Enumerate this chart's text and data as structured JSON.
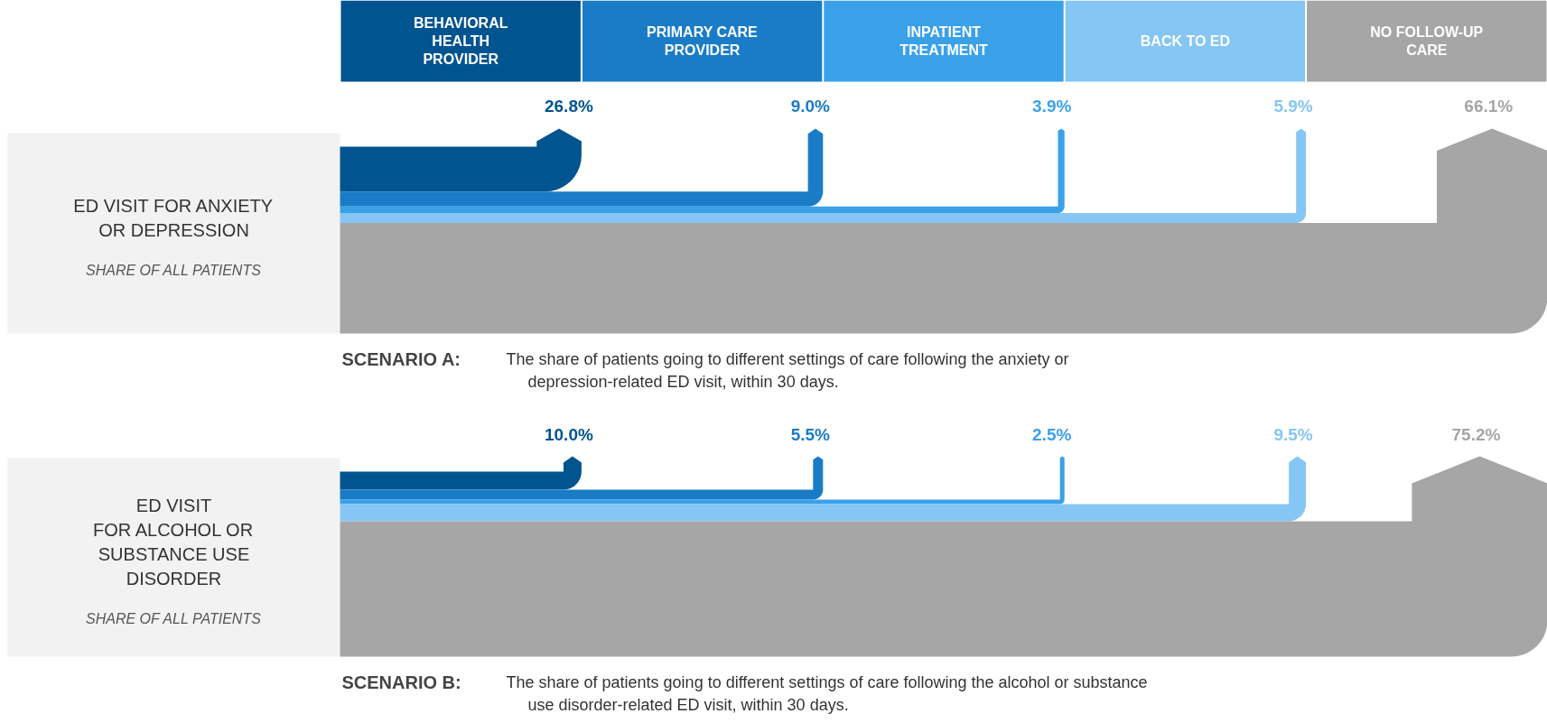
{
  "chart_data": [
    {
      "type": "other",
      "title": "ED VISIT FOR ANXIETY\nOR DEPRESSION",
      "subtitle": "SHARE OF ALL PATIENTS",
      "categories": [
        "BEHAVIORAL HEALTH PROVIDER",
        "PRIMARY CARE PROVIDER",
        "INPATIENT TREATMENT",
        "BACK TO ED",
        "NO FOLLOW-UP CARE"
      ],
      "values": [
        26.8,
        9.0,
        3.9,
        5.9,
        66.1
      ],
      "value_labels": [
        "26.8%",
        "9.0%",
        "3.9%",
        "5.9%",
        "66.1%"
      ],
      "colors": [
        "#00548f",
        "#1a7cc7",
        "#3aa1e9",
        "#86c6f4",
        "#a6a6a6"
      ],
      "annotations": [
        "SCENARIO A:",
        "The share of patients going to different settings of care following the anxiety or\ndepression-related ED visit, within 30 days."
      ]
    },
    {
      "type": "other",
      "title": "ED VISIT\nFOR ALCOHOL OR\nSUBSTANCE USE\nDISORDER",
      "subtitle": "SHARE OF ALL PATIENTS",
      "categories": [
        null,
        null,
        null,
        null,
        null
      ],
      "values": [
        10.0,
        5.5,
        2.5,
        9.5,
        75.2
      ],
      "value_labels": [
        "10.0%",
        "5.5%",
        "2.5%",
        "9.5%",
        "75.2%"
      ],
      "colors": [
        "#00548f",
        "#1a7cc7",
        "#3aa1e9",
        "#86c6f4",
        "#a6a6a6"
      ],
      "annotations": [
        "SCENARIO B:",
        "The share of patients going to different settings of care following the alcohol or substance\nuse disorder-related ED visit, within 30 days."
      ]
    }
  ]
}
